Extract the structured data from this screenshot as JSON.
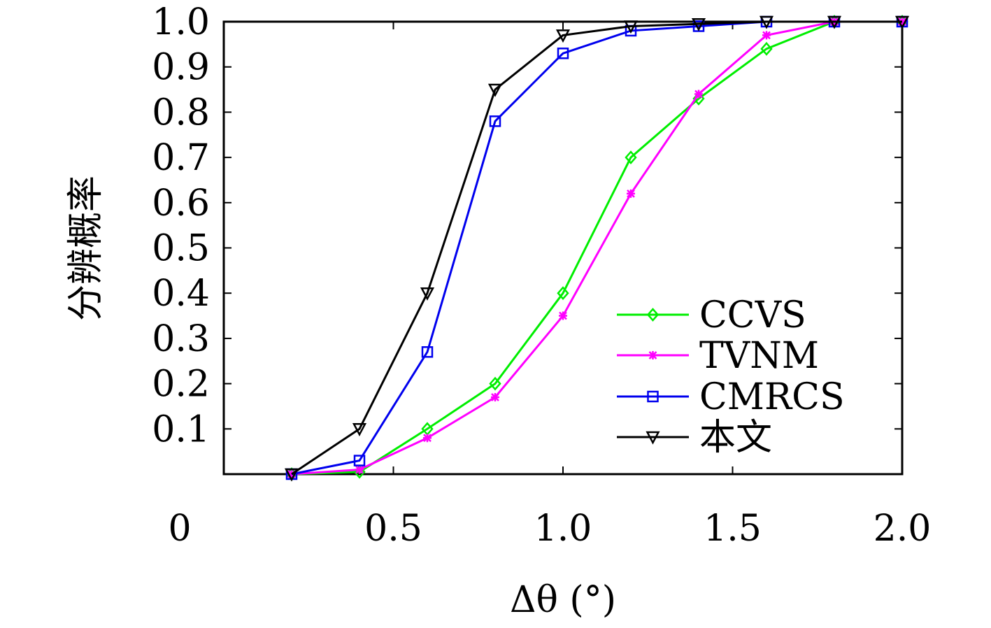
{
  "chart_data": {
    "type": "line",
    "xlabel": "Δθ (°)",
    "ylabel": "分辨概率",
    "xlim": [
      0,
      2.0
    ],
    "ylim": [
      0,
      1.0
    ],
    "x_ticks": [
      0.5,
      1.0,
      1.5,
      2.0
    ],
    "x_tick_labels": [
      "0.5",
      "1.0",
      "1.5",
      "2.0"
    ],
    "y_ticks": [
      0.1,
      0.2,
      0.3,
      0.4,
      0.5,
      0.6,
      0.7,
      0.8,
      0.9,
      1.0
    ],
    "y_tick_labels": [
      "0.1",
      "0.2",
      "0.3",
      "0.4",
      "0.5",
      "0.6",
      "0.7",
      "0.8",
      "0.9",
      "1.0"
    ],
    "origin_label": "0",
    "grid": false,
    "legend_position": "bottom-right",
    "x": [
      0.2,
      0.4,
      0.6,
      0.8,
      1.0,
      1.2,
      1.4,
      1.6,
      1.8,
      2.0
    ],
    "series": [
      {
        "name": "CCVS",
        "color": "#00ee00",
        "marker": "diamond",
        "values": [
          0.0,
          0.005,
          0.1,
          0.2,
          0.4,
          0.7,
          0.83,
          0.94,
          1.0,
          1.0
        ]
      },
      {
        "name": "TVNM",
        "color": "#ff00ff",
        "marker": "asterisk",
        "values": [
          0.0,
          0.01,
          0.08,
          0.17,
          0.35,
          0.62,
          0.84,
          0.97,
          1.0,
          1.0
        ]
      },
      {
        "name": "CMRCS",
        "color": "#0000ee",
        "marker": "square",
        "values": [
          0.0,
          0.03,
          0.27,
          0.78,
          0.93,
          0.98,
          0.99,
          1.0,
          1.0,
          1.0
        ]
      },
      {
        "name": "本文",
        "color": "#000000",
        "marker": "triangle-down",
        "values": [
          0.0,
          0.1,
          0.4,
          0.85,
          0.97,
          0.99,
          0.995,
          1.0,
          1.0,
          1.0
        ]
      }
    ]
  }
}
